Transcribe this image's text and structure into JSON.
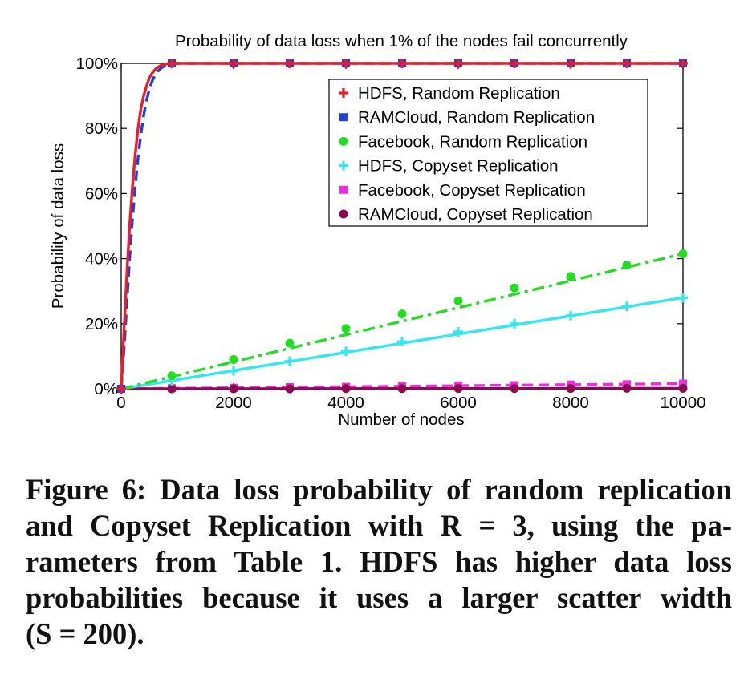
{
  "chart_data": {
    "type": "line",
    "title": "Probability of data loss when 1% of the nodes fail concurrently",
    "xlabel": "Number of nodes",
    "ylabel": "Probability of data loss",
    "xlim": [
      0,
      10000
    ],
    "ylim": [
      0,
      100
    ],
    "x_ticks": [
      0,
      2000,
      4000,
      6000,
      8000,
      10000
    ],
    "x_tick_labels": [
      "0",
      "2000",
      "4000",
      "6000",
      "8000",
      "10000"
    ],
    "y_ticks": [
      0,
      20,
      40,
      60,
      80,
      100
    ],
    "y_tick_labels": [
      "0%",
      "20%",
      "40%",
      "60%",
      "80%",
      "100%"
    ],
    "grid": false,
    "legend": "top-right",
    "series": [
      {
        "name": "HDFS, Random Replication",
        "color": "#ee1c24",
        "dash": "solid",
        "marker": "plus",
        "line_x": [
          0,
          50,
          100,
          150,
          200,
          250,
          300,
          350,
          400,
          450,
          500,
          550,
          600,
          650,
          700,
          750,
          800,
          850,
          900,
          1000,
          10000
        ],
        "line_y": [
          0,
          18,
          35,
          50,
          62,
          72,
          80,
          86,
          90,
          93,
          95.5,
          97,
          98,
          98.8,
          99.3,
          99.6,
          99.8,
          99.9,
          100,
          100,
          100
        ],
        "marker_x": [
          0,
          900,
          2000,
          3000,
          4000,
          5000,
          6000,
          7000,
          8000,
          9000,
          10000
        ],
        "marker_y": [
          0,
          100,
          100,
          100,
          100,
          100,
          100,
          100,
          100,
          100,
          100
        ]
      },
      {
        "name": "RAMCloud, Random Replication",
        "color": "#1f3fe0",
        "dash": "dashed",
        "marker": "square",
        "line_x": [
          0,
          50,
          100,
          150,
          200,
          250,
          300,
          350,
          400,
          450,
          500,
          550,
          600,
          650,
          700,
          750,
          800,
          850,
          900,
          1000,
          10000
        ],
        "line_y": [
          0,
          12,
          26,
          40,
          52,
          62,
          71,
          78,
          84,
          88.5,
          92,
          94.5,
          96.3,
          97.5,
          98.4,
          99,
          99.4,
          99.7,
          99.9,
          100,
          100
        ],
        "marker_x": [
          0,
          900,
          2000,
          3000,
          4000,
          5000,
          6000,
          7000,
          8000,
          9000,
          10000
        ],
        "marker_y": [
          0,
          100,
          100,
          100,
          100,
          100,
          100,
          100,
          100,
          100,
          100
        ]
      },
      {
        "name": "Facebook, Random Replication",
        "color": "#22dd22",
        "dash": "dashdot",
        "marker": "circle",
        "line_x": [
          0,
          10000
        ],
        "line_y": [
          0,
          41.5
        ],
        "marker_x": [
          0,
          900,
          2000,
          3000,
          4000,
          5000,
          6000,
          7000,
          8000,
          9000,
          10000
        ],
        "marker_y": [
          0,
          4,
          9,
          14,
          18.5,
          23,
          27,
          31,
          34.5,
          38,
          41.5
        ]
      },
      {
        "name": "HDFS, Copyset Replication",
        "color": "#33e6f2",
        "dash": "solid",
        "marker": "plus",
        "line_x": [
          0,
          10000
        ],
        "line_y": [
          0,
          28
        ],
        "marker_x": [
          0,
          900,
          2000,
          3000,
          4000,
          5000,
          6000,
          7000,
          8000,
          9000,
          10000
        ],
        "marker_y": [
          0,
          2.5,
          5.5,
          8.5,
          11.5,
          14.5,
          17.5,
          20,
          22.5,
          25.3,
          28
        ]
      },
      {
        "name": "Facebook, Copyset Replication",
        "color": "#ee2ce6",
        "dash": "dashed",
        "marker": "square",
        "line_x": [
          0,
          10000
        ],
        "line_y": [
          0,
          1.6
        ],
        "marker_x": [
          0,
          900,
          2000,
          3000,
          4000,
          5000,
          6000,
          7000,
          8000,
          9000,
          10000
        ],
        "marker_y": [
          0,
          0.2,
          0.3,
          0.5,
          0.6,
          0.8,
          1.0,
          1.1,
          1.3,
          1.4,
          1.6
        ]
      },
      {
        "name": "RAMCloud, Copyset Replication",
        "color": "#8b0a50",
        "dash": "solid",
        "marker": "circle",
        "line_x": [
          0,
          10000
        ],
        "line_y": [
          0,
          0.15
        ],
        "marker_x": [
          0,
          900,
          2000,
          3000,
          4000,
          5000,
          6000,
          7000,
          8000,
          9000,
          10000
        ],
        "marker_y": [
          0,
          0,
          0,
          0,
          0.05,
          0.05,
          0.1,
          0.1,
          0.1,
          0.15,
          0.15
        ]
      }
    ]
  },
  "caption": {
    "lines": [
      "Figure 6: Data loss probability of random replication",
      "and Copyset Replication with R = 3, using the pa-",
      "rameters from Table 1.  HDFS has higher data loss",
      "probabilities because it uses a larger scatter width",
      "(S = 200)."
    ]
  }
}
